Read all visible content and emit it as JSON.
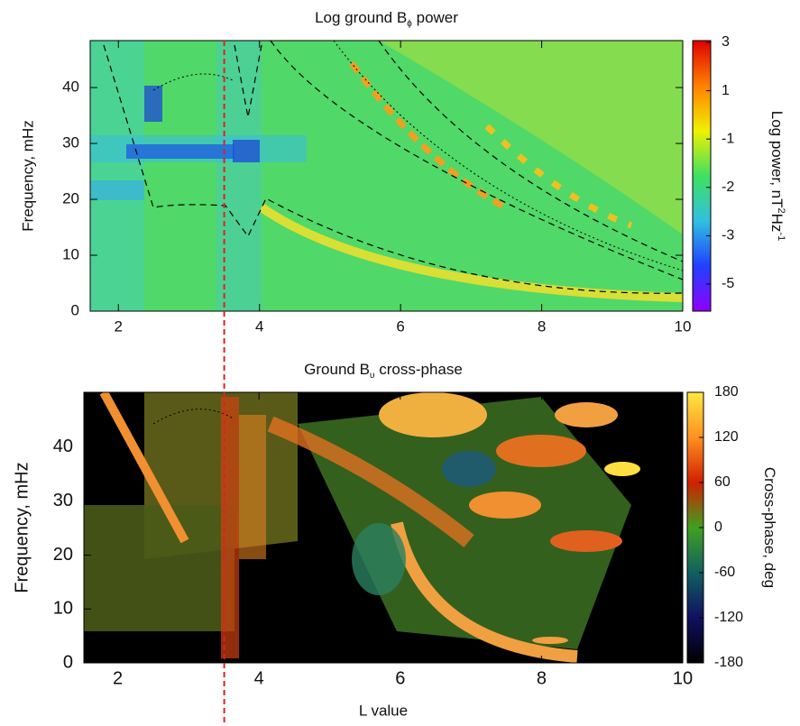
{
  "chart_data": [
    {
      "type": "heatmap",
      "title": [
        {
          "text": "Log ground B"
        },
        {
          "text": "ϕ",
          "sub": true
        },
        {
          "text": " power"
        }
      ],
      "ylabel": "Frequency, mHz",
      "xlim": [
        1.6,
        10
      ],
      "xticks": [
        2,
        4,
        6,
        8,
        10
      ],
      "ylim": [
        0,
        48.4
      ],
      "yticks": [
        0,
        10,
        20,
        30,
        40
      ],
      "colorbar": {
        "label": [
          {
            "text": "Log power, nT"
          },
          {
            "text": "2",
            "sup": true
          },
          {
            "text": "Hz"
          },
          {
            "text": "-1",
            "sup": true
          }
        ],
        "ticks": [
          3,
          1,
          -1,
          -2,
          -3,
          -5
        ],
        "colors": [
          "#e00000",
          "#ff8000",
          "#f0f000",
          "#40e060",
          "#30c0e0",
          "#2040ff",
          "#9000ff"
        ]
      }
    },
    {
      "type": "heatmap",
      "title": [
        {
          "text": "Ground B"
        },
        {
          "text": "υ",
          "sub": true
        },
        {
          "text": " cross-phase"
        }
      ],
      "ylabel": "Frequency, mHz",
      "xlabel": "L value",
      "xlim": [
        1.52,
        10
      ],
      "xticks": [
        2,
        4,
        6,
        8,
        10
      ],
      "ylim": [
        0,
        50.2
      ],
      "yticks": [
        0,
        10,
        20,
        30,
        40
      ],
      "colorbar": {
        "label": [
          {
            "text": "Cross-phase, deg"
          }
        ],
        "lim": [
          -180,
          180
        ],
        "ticks": [
          180,
          120,
          60,
          0,
          -60,
          -120,
          -180
        ],
        "colors": [
          "#ffe840",
          "#ff9020",
          "#d02000",
          "#40a020",
          "#106060",
          "#101060",
          "#000000"
        ]
      }
    }
  ],
  "marker_line": {
    "x": 3.5,
    "color": "#e02020"
  }
}
